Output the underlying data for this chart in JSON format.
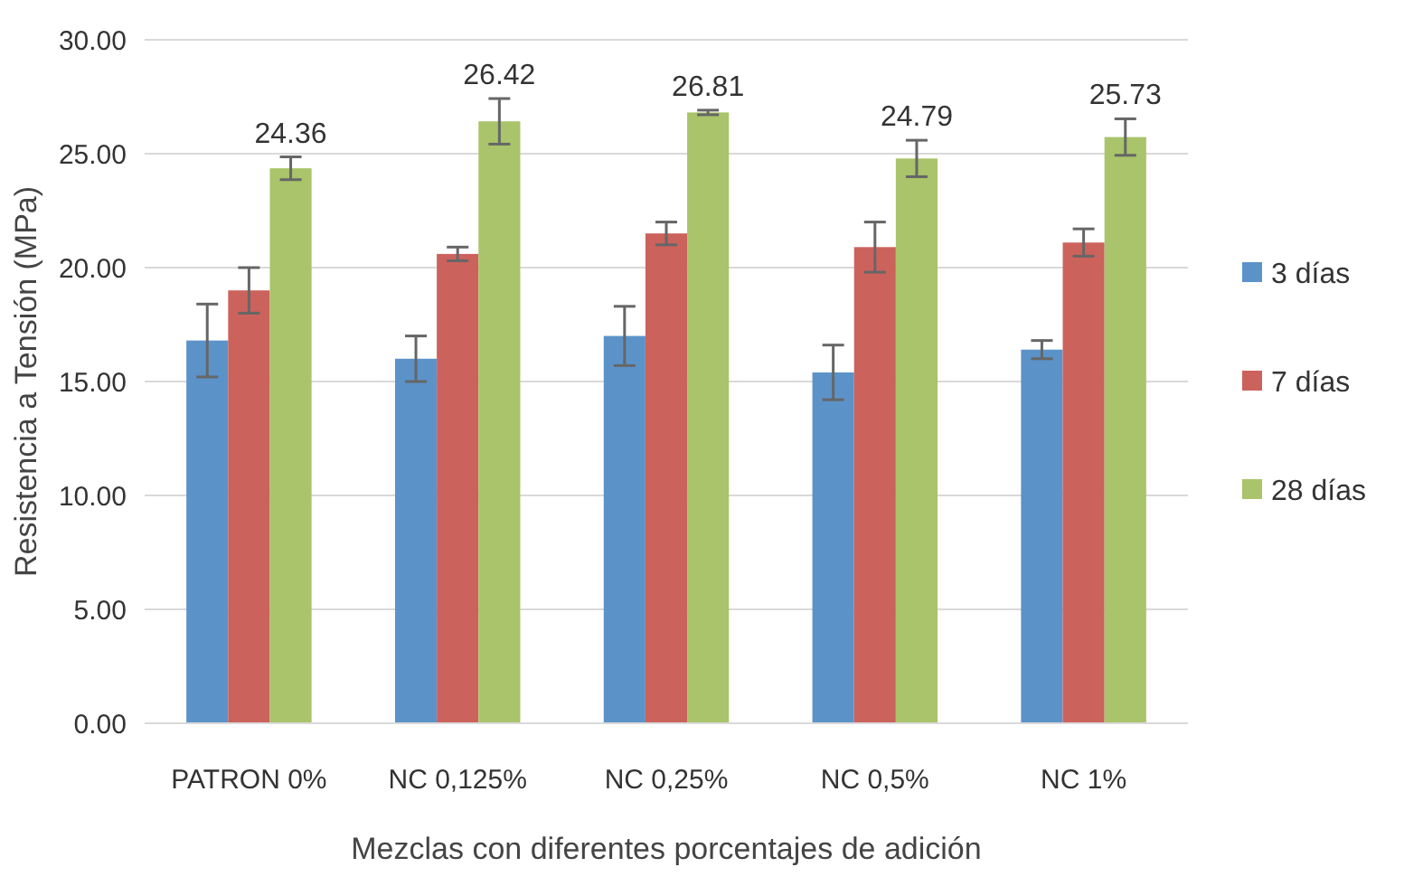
{
  "chart_data": {
    "type": "bar",
    "xlabel": "Mezclas con diferentes porcentajes de adición",
    "ylabel": "Resistencia a Tensión (MPa)",
    "categories": [
      "PATRON 0%",
      "NC 0,125%",
      "NC 0,25%",
      "NC 0,5%",
      "NC 1%"
    ],
    "series": [
      {
        "name": "3 días",
        "color": "#5b93c9",
        "values": [
          16.8,
          16.0,
          17.0,
          15.4,
          16.4
        ],
        "errors": [
          1.6,
          1.0,
          1.3,
          1.2,
          0.4
        ]
      },
      {
        "name": "7 días",
        "color": "#cc625c",
        "values": [
          19.0,
          20.6,
          21.5,
          20.9,
          21.1
        ],
        "errors": [
          1.0,
          0.3,
          0.5,
          1.1,
          0.6
        ]
      },
      {
        "name": "28 días",
        "color": "#a9c46a",
        "values": [
          24.36,
          26.42,
          26.81,
          24.79,
          25.73
        ],
        "errors": [
          0.5,
          1.0,
          0.1,
          0.8,
          0.8
        ],
        "value_labels": [
          "24.36",
          "26.42",
          "26.81",
          "24.79",
          "25.73"
        ]
      }
    ],
    "ylim": [
      0,
      30
    ],
    "yticks": [
      {
        "value": 0,
        "label": "0.00"
      },
      {
        "value": 5,
        "label": "5.00"
      },
      {
        "value": 10,
        "label": "10.00"
      },
      {
        "value": 15,
        "label": "15.00"
      },
      {
        "value": 20,
        "label": "20.00"
      },
      {
        "value": 25,
        "label": "25.00"
      },
      {
        "value": 30,
        "label": "30.00"
      }
    ],
    "grid": "y",
    "legend": "right"
  }
}
